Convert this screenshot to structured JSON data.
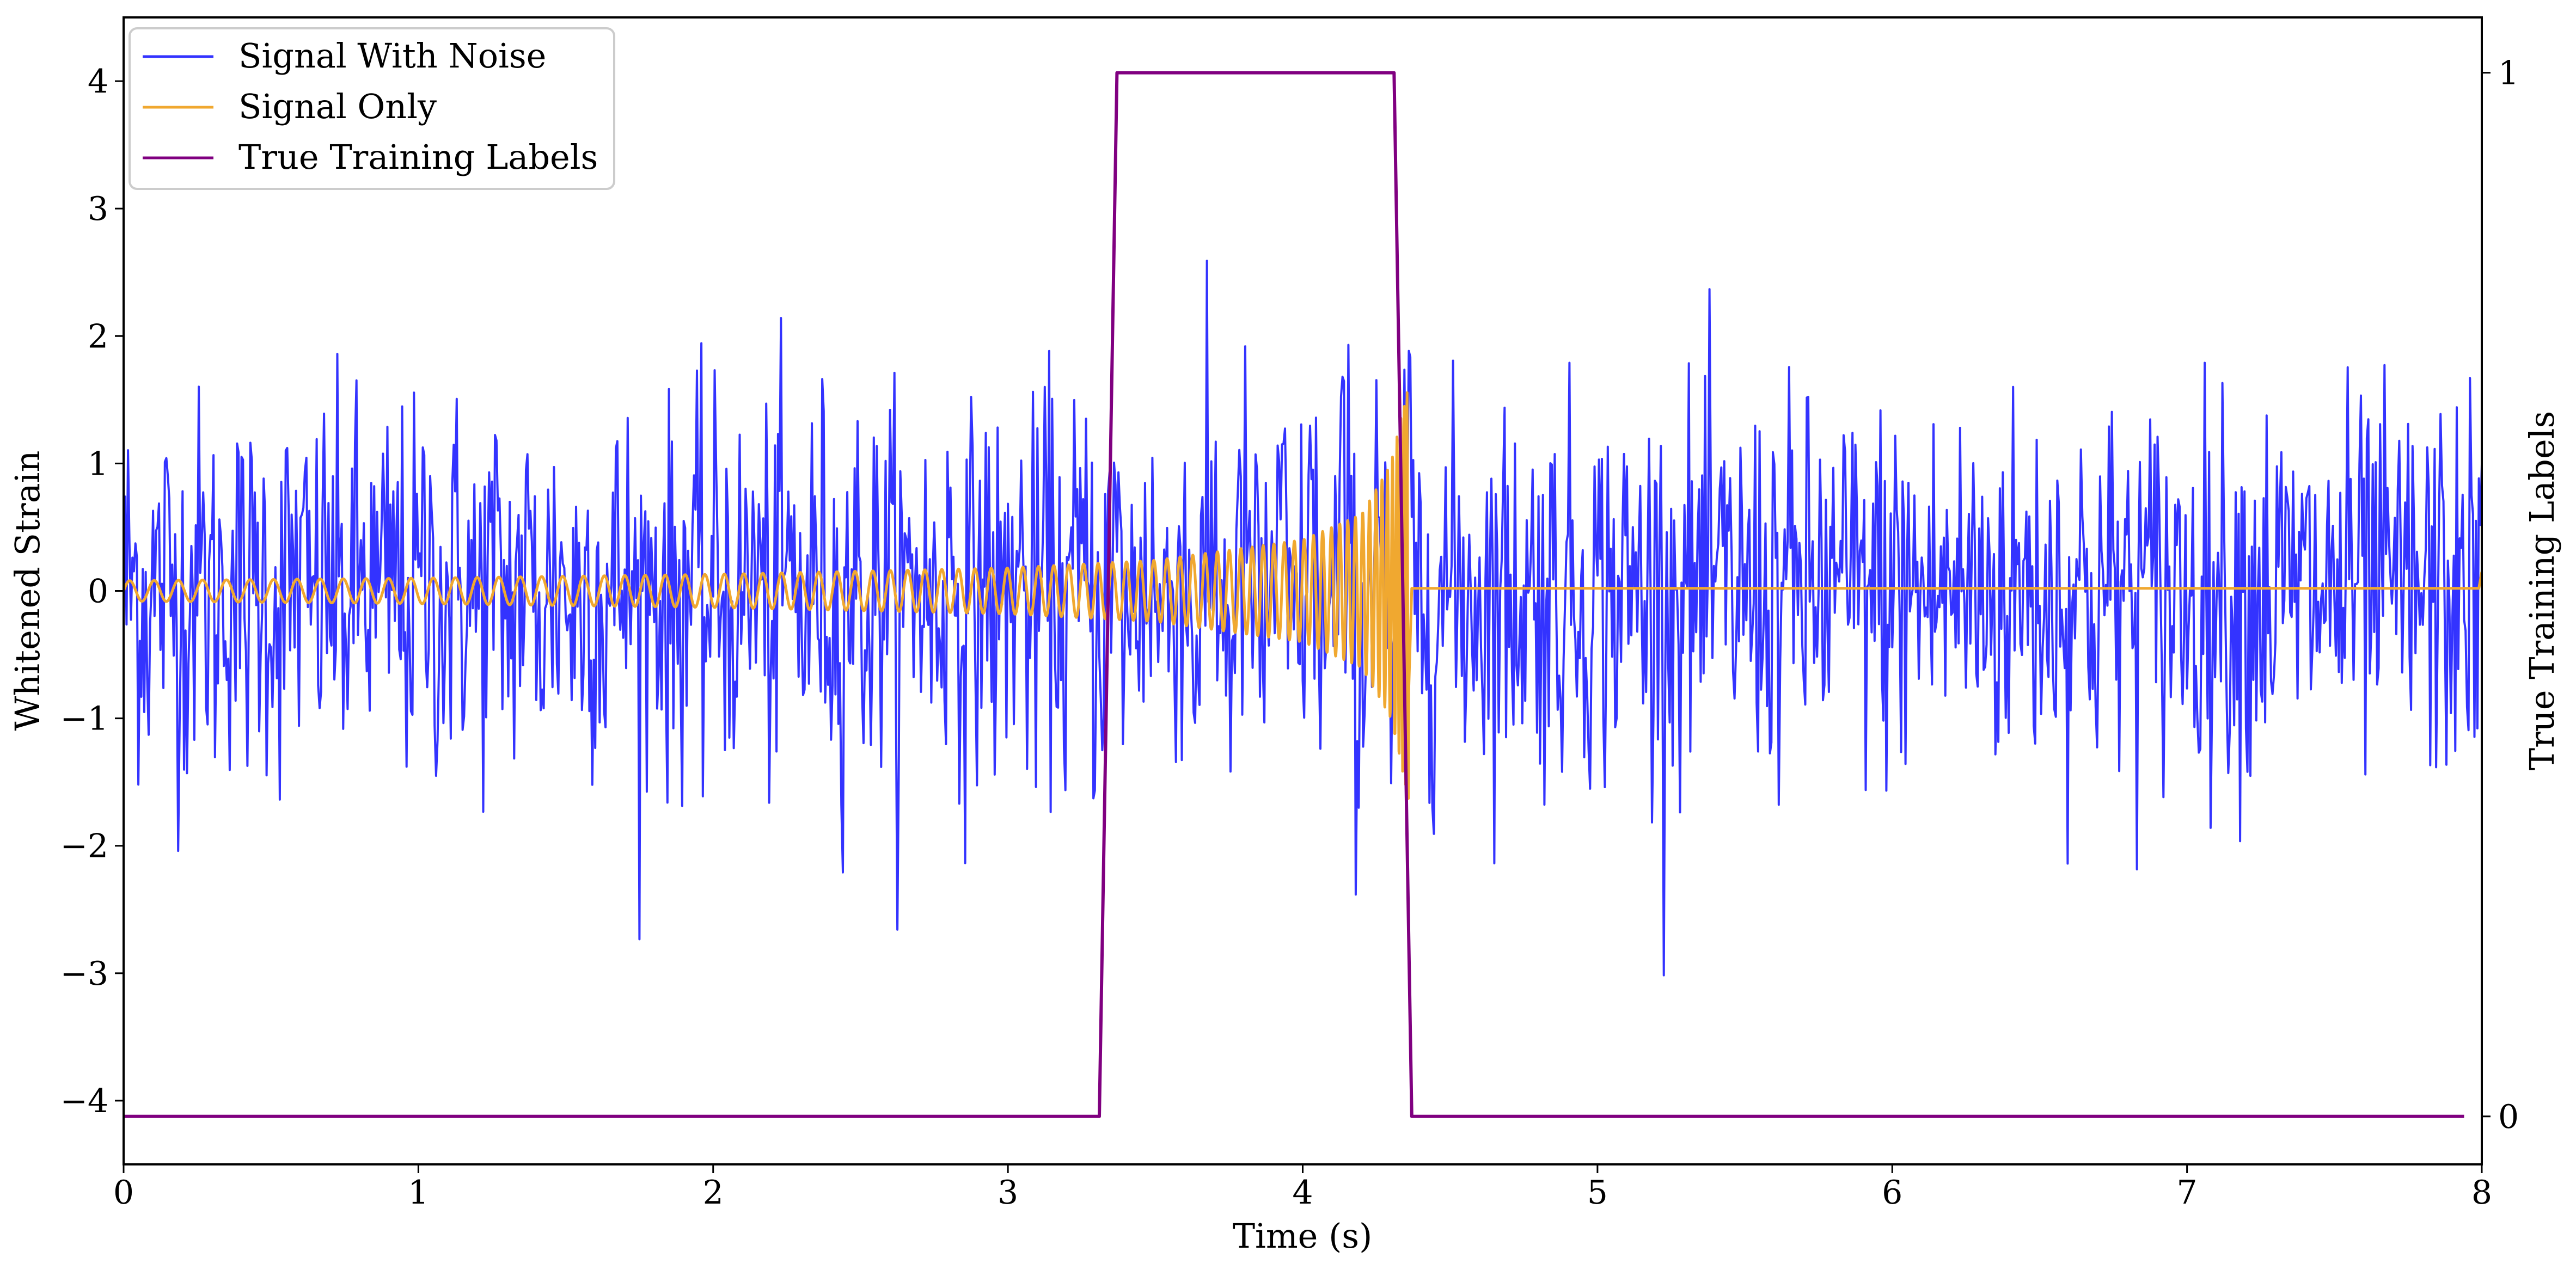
{
  "chart_data": {
    "type": "line",
    "title": "",
    "xlabel": "Time (s)",
    "ylabel": "Whitened Strain",
    "y2label": "True Training Labels",
    "xlim": [
      0,
      8
    ],
    "ylim": [
      -4.5,
      4.5
    ],
    "y2lim": [
      -0.046,
      1.053
    ],
    "x_ticks": [
      0,
      1,
      2,
      3,
      4,
      5,
      6,
      7,
      8
    ],
    "x_tick_labels": [
      "0",
      "1",
      "2",
      "3",
      "4",
      "5",
      "6",
      "7",
      "8"
    ],
    "y_ticks": [
      -4,
      -3,
      -2,
      -1,
      0,
      1,
      2,
      3,
      4
    ],
    "y_tick_labels": [
      "−4",
      "−3",
      "−2",
      "−1",
      "0",
      "1",
      "2",
      "3",
      "4"
    ],
    "y2_ticks": [
      0,
      1
    ],
    "y2_tick_labels": [
      "0",
      "1"
    ],
    "grid": false,
    "legend": {
      "placement": "upper-left"
    },
    "series": [
      {
        "name": "Signal With Noise",
        "color": "#3333ff",
        "axis": "left",
        "kind": "noise",
        "sigma": 0.75,
        "n_points": 1600
      },
      {
        "name": "Signal Only",
        "color": "#f0a830",
        "axis": "left",
        "kind": "chirp",
        "merger_time": 4.36,
        "amplitude_points": [
          [
            0.0,
            0.08
          ],
          [
            1.0,
            0.1
          ],
          [
            2.0,
            0.13
          ],
          [
            3.0,
            0.18
          ],
          [
            3.5,
            0.24
          ],
          [
            4.0,
            0.4
          ],
          [
            4.2,
            0.6
          ],
          [
            4.3,
            1.0
          ],
          [
            4.36,
            1.65
          ]
        ],
        "x_tail": [
          4.37,
          7.99
        ],
        "y_tail": 0.02,
        "end_value": 0.15
      },
      {
        "name": "True Training Labels",
        "color": "#800080",
        "axis": "right",
        "x": [
          0.0,
          3.31,
          3.37,
          4.31,
          4.37,
          7.94
        ],
        "y": [
          0,
          0,
          1,
          1,
          0,
          0
        ]
      }
    ]
  }
}
